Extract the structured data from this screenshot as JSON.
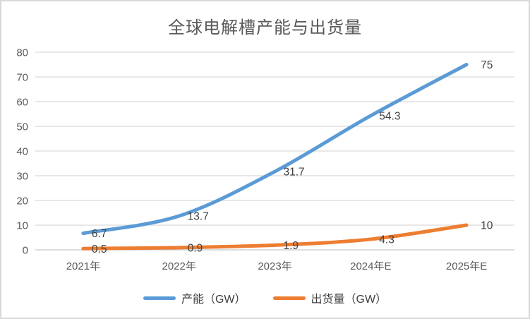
{
  "chart_data": {
    "type": "line",
    "title": "全球电解槽产能与出货量",
    "categories": [
      "2021年",
      "2022年",
      "2023年",
      "2024年E",
      "2025年E"
    ],
    "series": [
      {
        "name": "产能（GW）",
        "color": "#5B9BD5",
        "values": [
          6.7,
          13.7,
          31.7,
          54.3,
          75
        ]
      },
      {
        "name": "出货量（GW）",
        "color": "#ED7D31",
        "values": [
          0.5,
          0.9,
          1.9,
          4.3,
          10
        ]
      }
    ],
    "ylim": [
      0,
      80
    ],
    "yticks": [
      0,
      10,
      20,
      30,
      40,
      50,
      60,
      70,
      80
    ],
    "grid": true,
    "smooth": true,
    "legend_position": "bottom",
    "data_labels_position": "right",
    "colors": {
      "grid": "#D9D9D9",
      "axis": "#C6C6C6",
      "frame_border": "#D9D9D9",
      "tick_text": "#595959",
      "title_text": "#595959",
      "data_label_text": "#404040"
    }
  }
}
